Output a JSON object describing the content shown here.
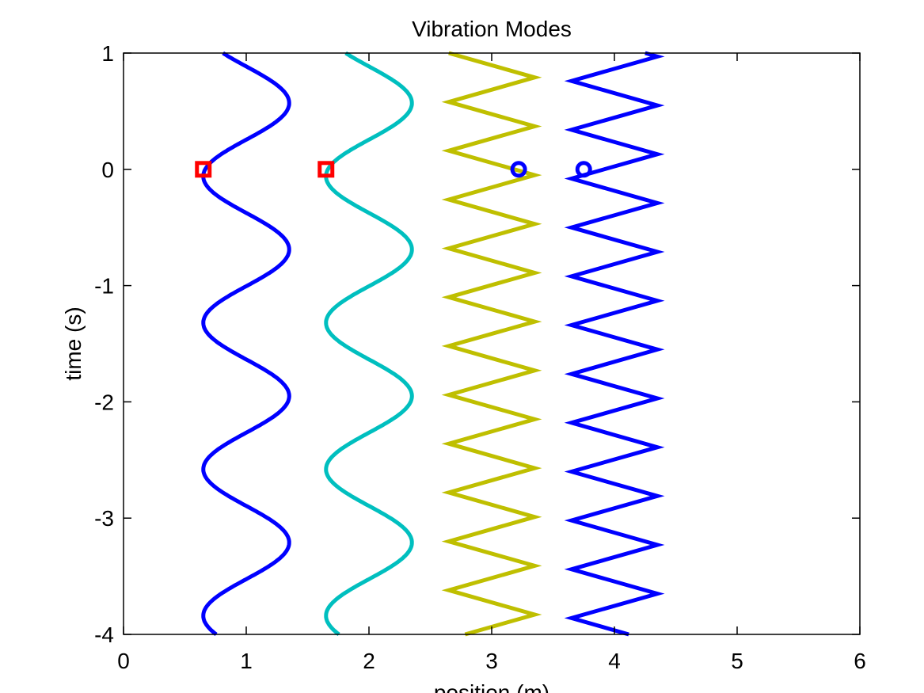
{
  "chart_data": {
    "type": "line",
    "title": "Vibration Modes",
    "xlabel": "position (m)",
    "ylabel": "time (s)",
    "xlim": [
      0,
      6
    ],
    "ylim": [
      -4,
      1
    ],
    "xticks": [
      0,
      1,
      2,
      3,
      4,
      5,
      6
    ],
    "yticks": [
      1,
      0,
      -1,
      -2,
      -3,
      -4
    ],
    "xtick_labels": [
      "0",
      "1",
      "2",
      "3",
      "4",
      "5",
      "6"
    ],
    "ytick_labels": [
      "1",
      "0",
      "-1",
      "-2",
      "-3",
      "-4"
    ],
    "grid": false,
    "series": [
      {
        "color": "#0000ff",
        "style": "smooth",
        "center": 1.0,
        "amplitude": 0.35,
        "period": 1.26,
        "max_time": 0.57,
        "t_range": [
          -4,
          1
        ],
        "marker": {
          "shape": "square",
          "color": "#ff0000",
          "x": 0.65,
          "y": 0
        }
      },
      {
        "color": "#00bfbf",
        "style": "smooth",
        "center": 2.0,
        "amplitude": 0.35,
        "period": 1.26,
        "max_time": 0.57,
        "t_range": [
          -4,
          1
        ],
        "marker": {
          "shape": "square",
          "color": "#ff0000",
          "x": 1.65,
          "y": 0
        }
      },
      {
        "color": "#bfbf00",
        "style": "zigzag",
        "center": 3.0,
        "amplitude": 0.35,
        "period": 0.42,
        "max_time": 0.79,
        "t_range": [
          -4,
          1
        ],
        "marker": {
          "shape": "circle",
          "color": "#0000ff",
          "x": 3.22,
          "y": 0
        }
      },
      {
        "color": "#0000ff",
        "style": "zigzag",
        "center": 4.0,
        "amplitude": 0.35,
        "period": 0.42,
        "max_time": 0.13,
        "t_range": [
          -4,
          1
        ],
        "marker": {
          "shape": "circle",
          "color": "#0000ff",
          "x": 3.75,
          "y": 0
        }
      }
    ]
  }
}
